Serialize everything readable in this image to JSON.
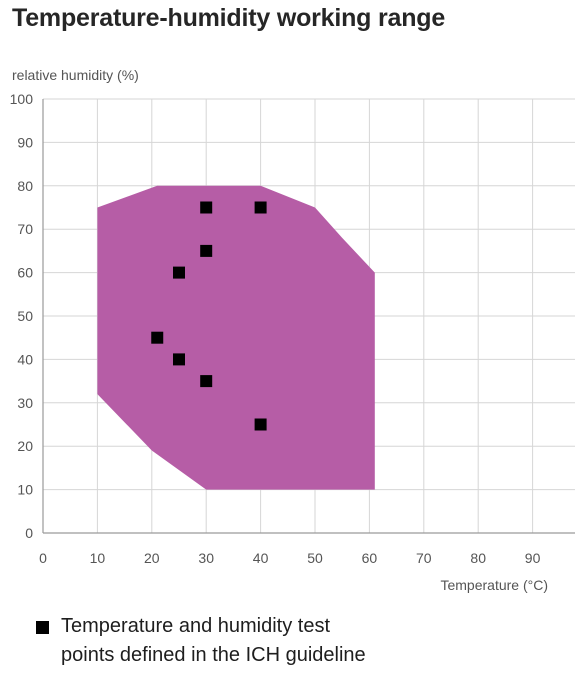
{
  "chart_data": {
    "type": "scatter",
    "title": "Temperature-humidity working range",
    "xlabel": "Temperature (°C)",
    "ylabel": "relative humidity (%)",
    "xlim": [
      0,
      100
    ],
    "ylim": [
      0,
      100
    ],
    "x_ticks": [
      0,
      10,
      20,
      30,
      40,
      50,
      60,
      70,
      80,
      90
    ],
    "y_ticks": [
      0,
      10,
      20,
      30,
      40,
      50,
      60,
      70,
      80,
      90,
      100
    ],
    "grid": true,
    "working_range": {
      "color": "#b65da6",
      "polygon": [
        [
          10,
          75
        ],
        [
          21,
          80
        ],
        [
          40,
          80
        ],
        [
          50,
          75
        ],
        [
          55,
          68
        ],
        [
          61,
          60
        ],
        [
          61,
          10
        ],
        [
          30,
          10
        ],
        [
          20,
          19
        ],
        [
          10,
          32
        ]
      ]
    },
    "series": [
      {
        "name": "Temperature and humidity test points defined in the ICH guideline",
        "color": "#000000",
        "points": [
          [
            30,
            75
          ],
          [
            40,
            75
          ],
          [
            30,
            65
          ],
          [
            25,
            60
          ],
          [
            21,
            45
          ],
          [
            25,
            40
          ],
          [
            30,
            35
          ],
          [
            40,
            25
          ]
        ]
      }
    ],
    "legend": {
      "position": "bottom-left",
      "lines": [
        "Temperature and humidity test",
        "points defined in the ICH guideline"
      ]
    }
  }
}
